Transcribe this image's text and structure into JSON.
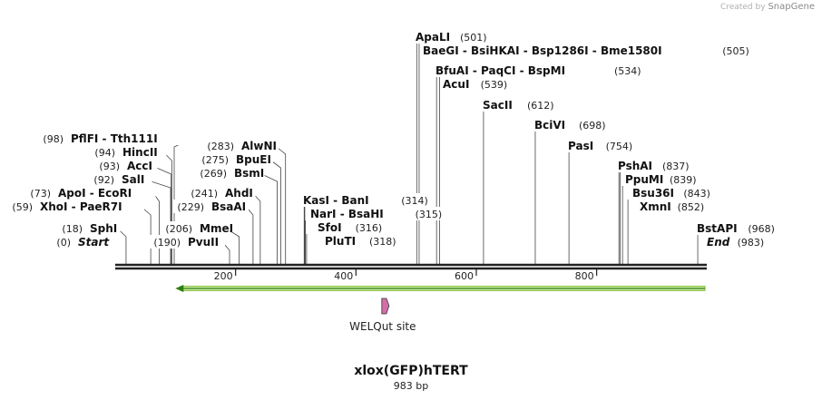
{
  "watermark": {
    "prefix": "Created by",
    "brand": "SnapGene"
  },
  "plasmid": {
    "name": "xlox(GFP)hTERT",
    "length_label": "983 bp",
    "length": 983
  },
  "ruler": {
    "ticks": [
      200,
      400,
      600,
      800
    ]
  },
  "features": [
    {
      "name": "arrow",
      "start": 100,
      "end": 983,
      "direction": "reverse",
      "color": "#8bc34a"
    },
    {
      "name": "WELQut site",
      "start": 443,
      "end": 453,
      "color": "#d36fa8"
    }
  ],
  "site_labels": [
    {
      "name": "Start",
      "pos": 0,
      "pos_label": "(0)",
      "italic": true
    },
    {
      "name": "SphI",
      "pos": 18,
      "pos_label": "(18)"
    },
    {
      "name": "XhoI  -  PaeR7I",
      "pos": 59,
      "pos_label": "(59)"
    },
    {
      "name": "ApoI  -  EcoRI",
      "pos": 73,
      "pos_label": "(73)"
    },
    {
      "name": "SalI",
      "pos": 92,
      "pos_label": "(92)"
    },
    {
      "name": "AccI",
      "pos": 93,
      "pos_label": "(93)"
    },
    {
      "name": "HincII",
      "pos": 94,
      "pos_label": "(94)"
    },
    {
      "name": "PflFI  -  Tth111I",
      "pos": 98,
      "pos_label": "(98)"
    },
    {
      "name": "PvuII",
      "pos": 190,
      "pos_label": "(190)"
    },
    {
      "name": "MmeI",
      "pos": 206,
      "pos_label": "(206)"
    },
    {
      "name": "BsaAI",
      "pos": 229,
      "pos_label": "(229)"
    },
    {
      "name": "AhdI",
      "pos": 241,
      "pos_label": "(241)"
    },
    {
      "name": "BsmI",
      "pos": 269,
      "pos_label": "(269)"
    },
    {
      "name": "BpuEI",
      "pos": 275,
      "pos_label": "(275)"
    },
    {
      "name": "AlwNI",
      "pos": 283,
      "pos_label": "(283)"
    },
    {
      "name": "KasI  -  BanI",
      "pos": 314,
      "pos_label": "(314)"
    },
    {
      "name": "NarI  -  BsaHI",
      "pos": 315,
      "pos_label": "(315)"
    },
    {
      "name": "SfoI",
      "pos": 316,
      "pos_label": "(316)"
    },
    {
      "name": "PluTI",
      "pos": 318,
      "pos_label": "(318)"
    },
    {
      "name": "ApaLI",
      "pos": 501,
      "pos_label": "(501)"
    },
    {
      "name": "BaeGI  -  BsiHKAI  -  Bsp1286I  -  Bme1580I",
      "pos": 505,
      "pos_label": "(505)"
    },
    {
      "name": "BfuAI  -  PaqCI  -  BspMI",
      "pos": 534,
      "pos_label": "(534)"
    },
    {
      "name": "AcuI",
      "pos": 539,
      "pos_label": "(539)"
    },
    {
      "name": "SacII",
      "pos": 612,
      "pos_label": "(612)"
    },
    {
      "name": "BciVI",
      "pos": 698,
      "pos_label": "(698)"
    },
    {
      "name": "PasI",
      "pos": 754,
      "pos_label": "(754)"
    },
    {
      "name": "PshAI",
      "pos": 837,
      "pos_label": "(837)"
    },
    {
      "name": "PpuMI",
      "pos": 839,
      "pos_label": "(839)"
    },
    {
      "name": "Bsu36I",
      "pos": 843,
      "pos_label": "(843)"
    },
    {
      "name": "XmnI",
      "pos": 852,
      "pos_label": "(852)"
    },
    {
      "name": "BstAPI",
      "pos": 968,
      "pos_label": "(968)"
    },
    {
      "name": "End",
      "pos": 983,
      "pos_label": "(983)",
      "italic": true
    }
  ]
}
